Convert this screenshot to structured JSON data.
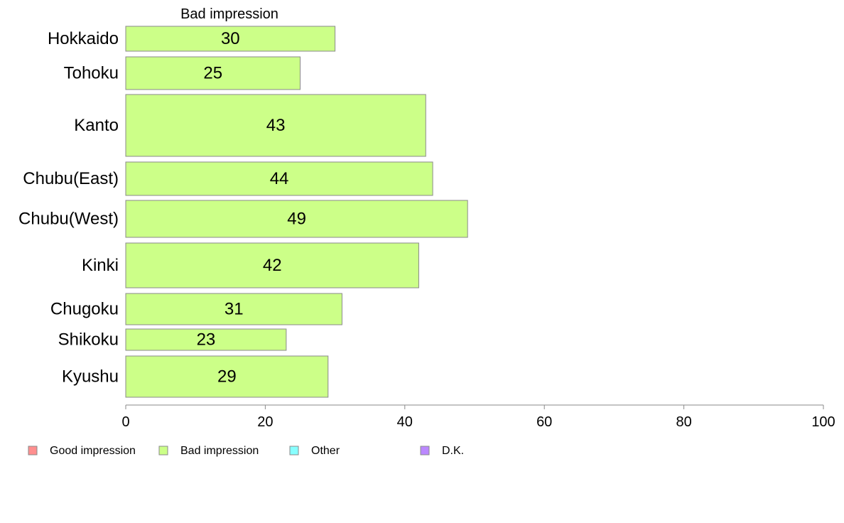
{
  "chart_data": {
    "type": "bar",
    "orientation": "horizontal",
    "stacked": true,
    "title": "Bad impression",
    "categories": [
      "Hokkaido",
      "Tohoku",
      "Kanto",
      "Chubu(East)",
      "Chubu(West)",
      "Kinki",
      "Chugoku",
      "Shikoku",
      "Kyushu"
    ],
    "series": [
      {
        "name": "Good impression",
        "color": "#ff8f8f",
        "values": [
          0,
          0,
          0,
          0,
          0,
          0,
          0,
          0,
          0
        ]
      },
      {
        "name": "Bad impression",
        "color": "#ccff88",
        "values": [
          30,
          25,
          43,
          44,
          49,
          42,
          31,
          23,
          29
        ]
      },
      {
        "name": "Other",
        "color": "#88ffff",
        "values": [
          0,
          0,
          0,
          0,
          0,
          0,
          0,
          0,
          0
        ]
      },
      {
        "name": "D.K.",
        "color": "#bb88ff",
        "values": [
          0,
          0,
          0,
          0,
          0,
          0,
          0,
          0,
          0
        ]
      }
    ],
    "data_labels": [
      "30",
      "25",
      "43",
      "44",
      "49",
      "42",
      "31",
      "23",
      "29"
    ],
    "x_ticks": [
      "0",
      "20",
      "40",
      "60",
      "80",
      "100"
    ],
    "xlim": [
      0,
      100
    ],
    "grid": false,
    "legend_position": "bottom-left"
  }
}
